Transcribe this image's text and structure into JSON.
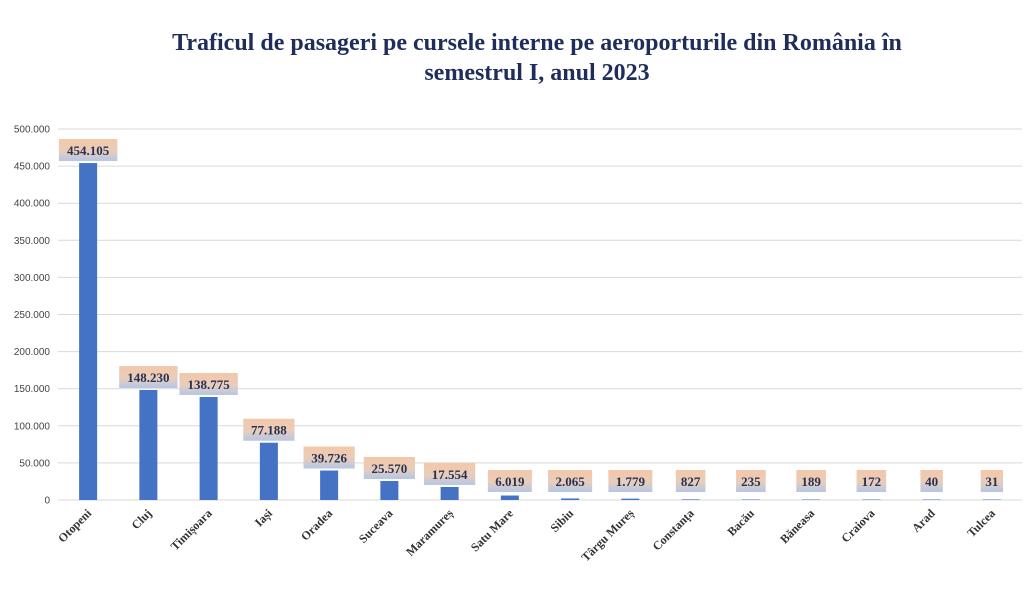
{
  "chart_data": {
    "type": "bar",
    "title_line1": "Traficul de pasageri pe cursele interne pe aeroporturile din România în",
    "title_line2": "semestrul I, anul 2023",
    "xlabel": "",
    "ylabel": "",
    "ylim": [
      0,
      500000
    ],
    "yticks": [
      0,
      50000,
      100000,
      150000,
      200000,
      250000,
      300000,
      350000,
      400000,
      450000,
      500000
    ],
    "ytick_labels": [
      "0",
      "50.000",
      "100.000",
      "150.000",
      "200.000",
      "250.000",
      "300.000",
      "350.000",
      "400.000",
      "450.000",
      "500.000"
    ],
    "categories": [
      "Otopeni",
      "Cluj",
      "Timișoara",
      "Iași",
      "Oradea",
      "Suceava",
      "Maramureș",
      "Satu Mare",
      "Sibiu",
      "Târgu Mureș",
      "Constanța",
      "Bacău",
      "Băneasa",
      "Craiova",
      "Arad",
      "Tulcea"
    ],
    "values": [
      454105,
      148230,
      138775,
      77188,
      39726,
      25570,
      17554,
      6019,
      2065,
      1779,
      827,
      235,
      189,
      172,
      40,
      31
    ],
    "value_labels": [
      "454.105",
      "148.230",
      "138.775",
      "77.188",
      "39.726",
      "25.570",
      "17.554",
      "6.019",
      "2.065",
      "1.779",
      "827",
      "235",
      "189",
      "172",
      "40",
      "31"
    ],
    "grid": true,
    "legend": "none",
    "colors": {
      "bar": "#4472c4",
      "grid": "#d9d9d9",
      "label_top": "#f4c7a8",
      "label_bottom": "#b4c7e7",
      "title": "#1f2d5a"
    }
  }
}
